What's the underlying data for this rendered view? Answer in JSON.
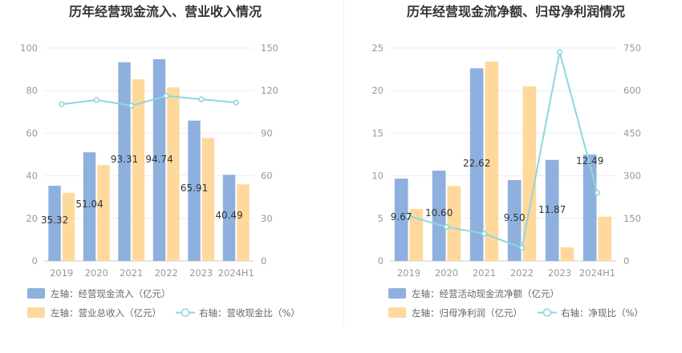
{
  "chart_data": [
    {
      "type": "bar",
      "title": "历年经营现金流入、营业收入情况",
      "categories": [
        "2019",
        "2020",
        "2021",
        "2022",
        "2023",
        "2024H1"
      ],
      "y_left": {
        "ylim": [
          0,
          100
        ],
        "ticks": [
          "0",
          "20",
          "40",
          "60",
          "80",
          "100"
        ]
      },
      "y_right": {
        "ylim": [
          0,
          150
        ],
        "ticks": [
          "0",
          "30",
          "60",
          "90",
          "120",
          "150"
        ]
      },
      "grid": true,
      "legend_position": "bottom-left",
      "series": [
        {
          "name": "左轴：经营现金流入（亿元）",
          "type": "bar",
          "axis": "left",
          "color": "#8eb0de",
          "values": [
            35.32,
            51.04,
            93.31,
            94.74,
            65.91,
            40.49
          ],
          "labels": [
            "35.32",
            "51.04",
            "93.31",
            "94.74",
            "65.91",
            "40.49"
          ]
        },
        {
          "name": "左轴：营业总收入（亿元）",
          "type": "bar",
          "axis": "left",
          "color": "#ffd99c",
          "values": [
            32.0,
            45.0,
            85.3,
            81.5,
            57.8,
            36.0
          ]
        },
        {
          "name": "右轴：营收现金比（%）",
          "type": "line",
          "axis": "right",
          "color": "#8fd6dc",
          "values": [
            110.4,
            113.4,
            109.4,
            116.3,
            113.9,
            111.6
          ]
        }
      ]
    },
    {
      "type": "bar",
      "title": "历年经营现金流净额、归母净利润情况",
      "categories": [
        "2019",
        "2020",
        "2021",
        "2022",
        "2023",
        "2024H1"
      ],
      "y_left": {
        "ylim": [
          0,
          25
        ],
        "ticks": [
          "0",
          "5",
          "10",
          "15",
          "20",
          "25"
        ]
      },
      "y_right": {
        "ylim": [
          0,
          750
        ],
        "ticks": [
          "0",
          "150",
          "300",
          "450",
          "600",
          "750"
        ]
      },
      "grid": true,
      "legend_position": "bottom-left",
      "series": [
        {
          "name": "左轴：经营活动现金流净额（亿元）",
          "type": "bar",
          "axis": "left",
          "color": "#8eb0de",
          "values": [
            9.67,
            10.6,
            22.62,
            9.5,
            11.87,
            12.49
          ],
          "labels": [
            "9.67",
            "10.60",
            "22.62",
            "9.50",
            "11.87",
            "12.49"
          ]
        },
        {
          "name": "左轴：归母净利润（亿元）",
          "type": "bar",
          "axis": "left",
          "color": "#ffd99c",
          "values": [
            6.1,
            8.8,
            23.4,
            20.5,
            1.6,
            5.2
          ]
        },
        {
          "name": "右轴：净现比（%）",
          "type": "line",
          "axis": "right",
          "color": "#8fd6dc",
          "values": [
            158,
            120,
            96,
            46,
            736,
            240
          ]
        }
      ]
    }
  ]
}
